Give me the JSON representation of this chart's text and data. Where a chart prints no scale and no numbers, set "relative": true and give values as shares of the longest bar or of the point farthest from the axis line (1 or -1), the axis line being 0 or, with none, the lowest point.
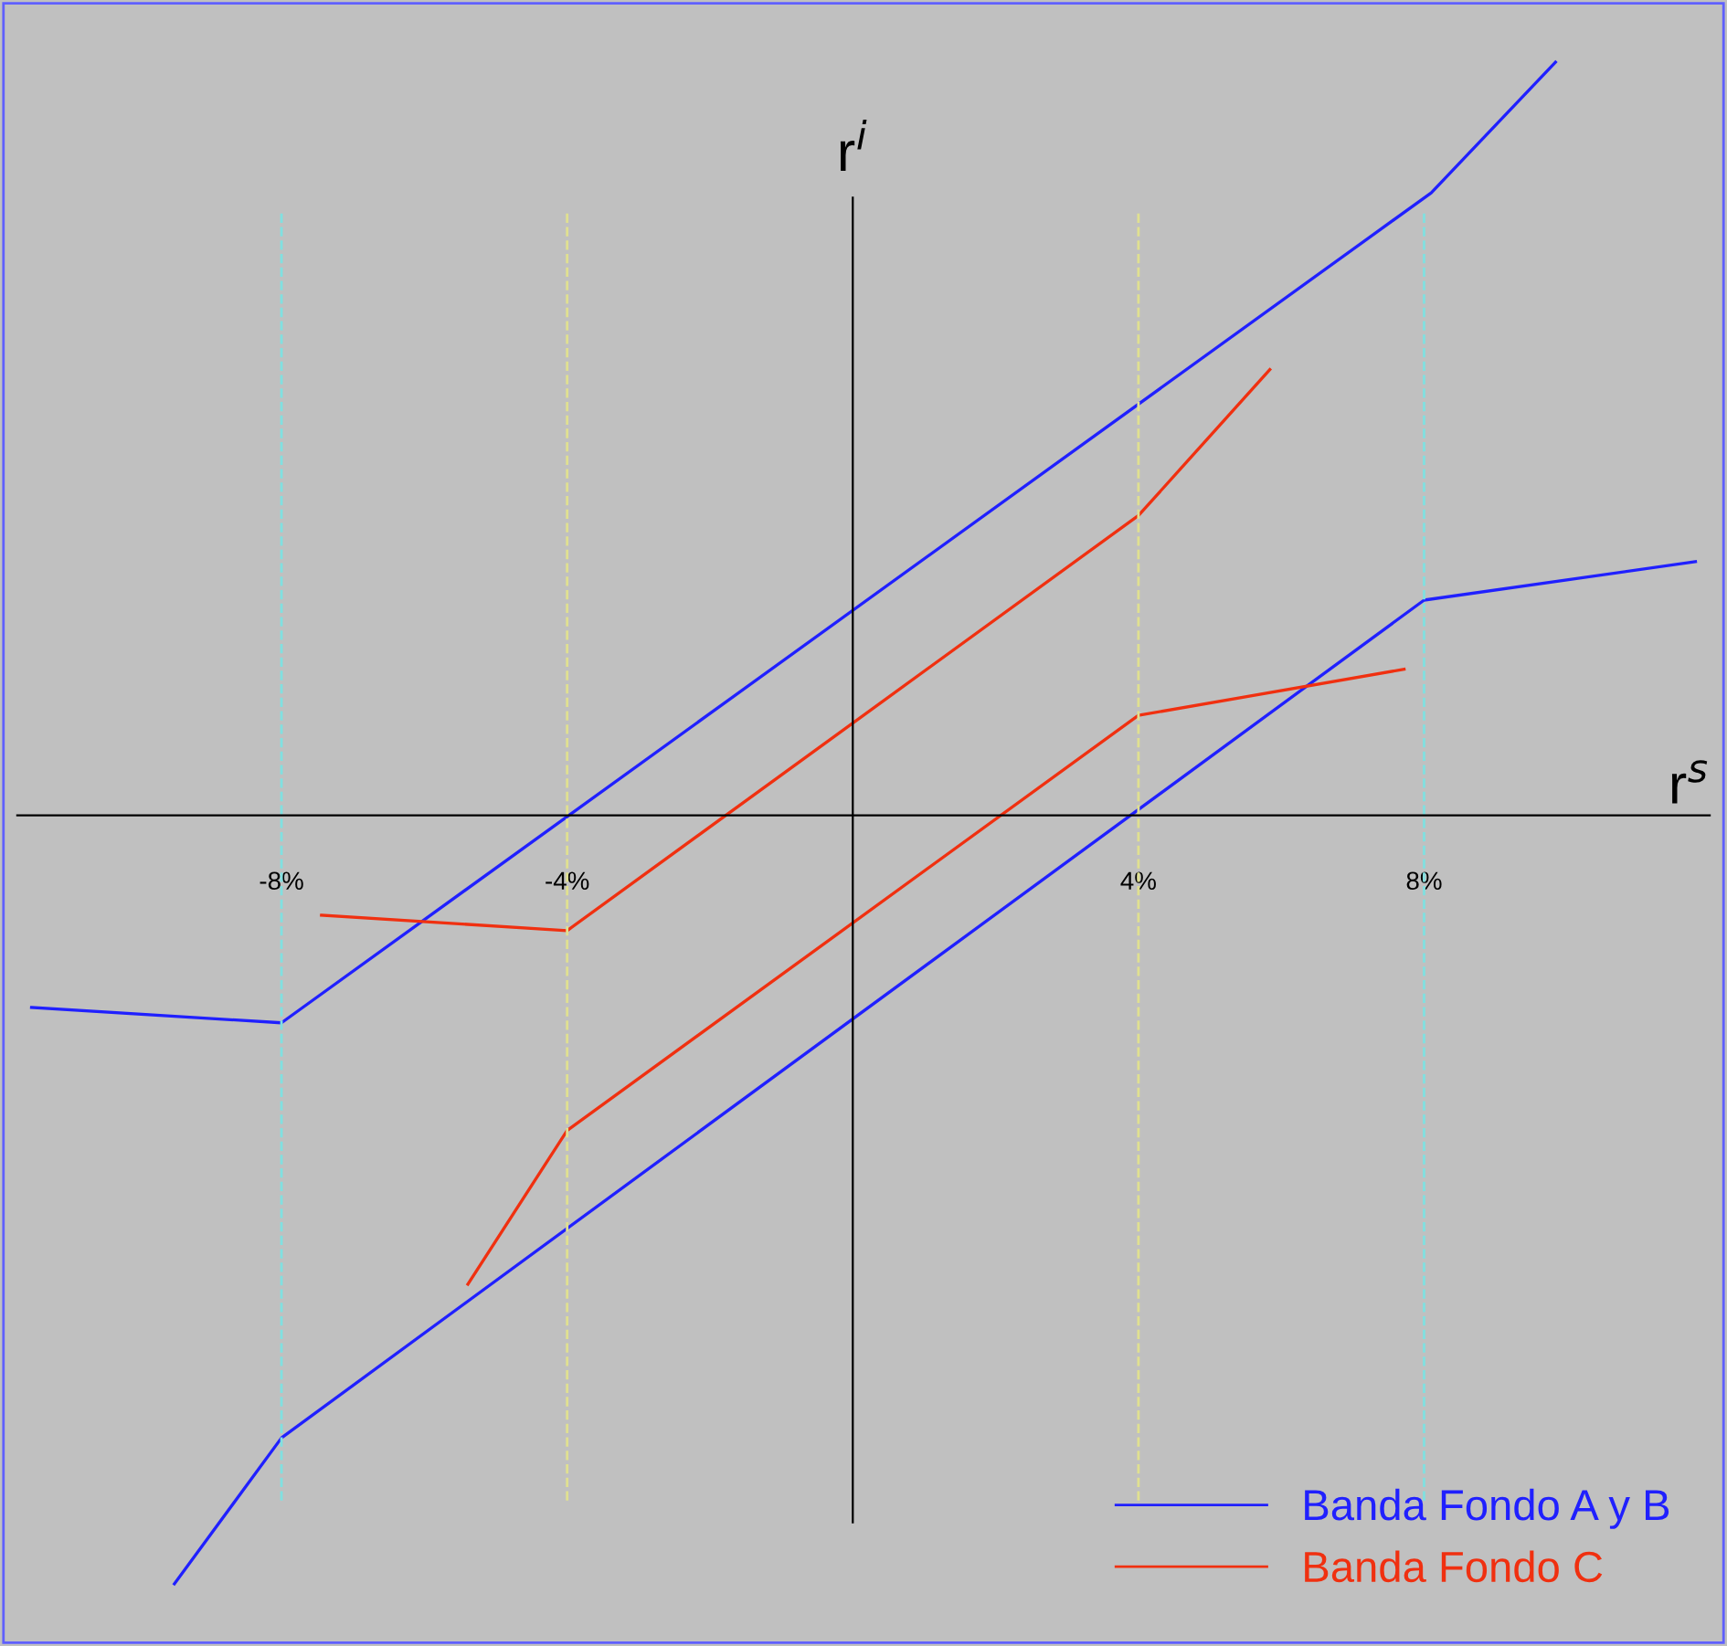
{
  "chart_data": {
    "type": "line",
    "relative": true,
    "xlabel": "r$^{s}$",
    "ylabel": "r$^{i}$",
    "xlim": [
      -11.7,
      12
    ],
    "xticks": [
      {
        "value": -8,
        "label": "-8%"
      },
      {
        "value": -4,
        "label": "-4%"
      },
      {
        "value": 4,
        "label": "4%"
      },
      {
        "value": 8,
        "label": "8%"
      }
    ],
    "series": [
      {
        "name": "Banda Fondo A y B",
        "color": "#2020ff",
        "x": [
          -11.5,
          -8,
          8.1,
          9.84
        ],
        "values": [
          -0.25,
          -0.27,
          0.81,
          0.98
        ]
      },
      {
        "color": "#2020ff",
        "x": [
          -9.5,
          -8,
          8,
          11.8
        ],
        "values": [
          -1,
          -0.81,
          0.28,
          0.33
        ]
      },
      {
        "name": "Banda Fondo C",
        "color": "#f03010",
        "x": [
          -7.44,
          -4,
          4,
          5.84
        ],
        "values": [
          -0.13,
          -0.15,
          0.39,
          0.58
        ]
      },
      {
        "color": "#f03010",
        "x": [
          -5.39,
          -4,
          4,
          7.72
        ],
        "values": [
          -0.61,
          -0.41,
          0.13,
          0.19
        ]
      }
    ],
    "ref_lines": [
      {
        "axis": "x",
        "value": -8,
        "color": "#80e0e0",
        "line_style": "dashed"
      },
      {
        "axis": "x",
        "value": -4,
        "color": "#e0e090",
        "line_style": "dashed"
      },
      {
        "axis": "x",
        "value": 4,
        "color": "#e0e090",
        "line_style": "dashed"
      },
      {
        "axis": "x",
        "value": 8,
        "color": "#80e0e0",
        "line_style": "dashed"
      }
    ],
    "legend": "bottom right",
    "grid": false,
    "marker": "none",
    "line_style": "solid"
  }
}
